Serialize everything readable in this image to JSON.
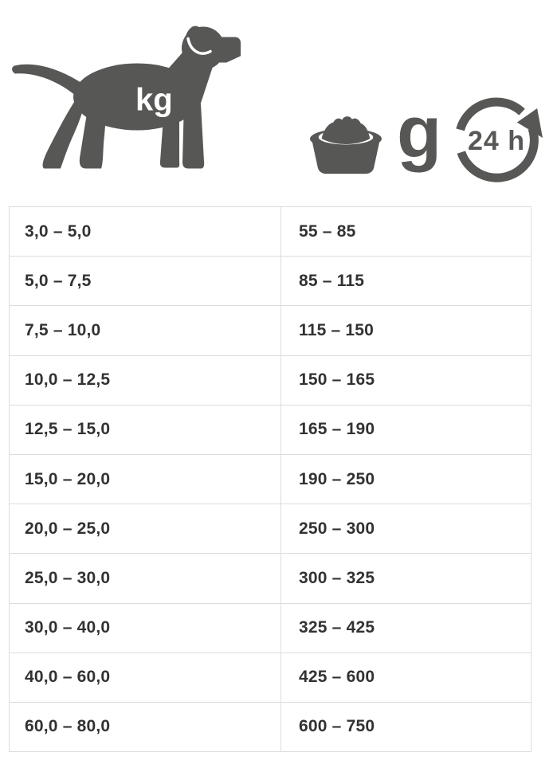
{
  "legend": {
    "weight_unit": "kg",
    "portion_unit": "g",
    "period": "24 h"
  },
  "icons": {
    "dog": "dog-silhouette-icon",
    "bowl": "food-bowl-icon",
    "cycle": "24h-cycle-icon"
  },
  "colors": {
    "icon_gray": "#575756",
    "table_text": "#323232",
    "table_border": "#dcdcdc",
    "background": "#ffffff"
  },
  "chart_data": {
    "type": "table",
    "title": "",
    "columns": [
      "kg",
      "g / 24 h"
    ],
    "rows": [
      [
        "3,0 – 5,0",
        "55 – 85"
      ],
      [
        "5,0 – 7,5",
        "85 – 115"
      ],
      [
        "7,5 – 10,0",
        "115 – 150"
      ],
      [
        "10,0 – 12,5",
        "150 – 165"
      ],
      [
        "12,5 – 15,0",
        "165 – 190"
      ],
      [
        "15,0 – 20,0",
        "190 – 250"
      ],
      [
        "20,0 – 25,0",
        "250 – 300"
      ],
      [
        "25,0 – 30,0",
        "300 – 325"
      ],
      [
        "30,0 – 40,0",
        "325 – 425"
      ],
      [
        "40,0 – 60,0",
        "425 – 600"
      ],
      [
        "60,0 – 80,0",
        "600 – 750"
      ]
    ]
  }
}
